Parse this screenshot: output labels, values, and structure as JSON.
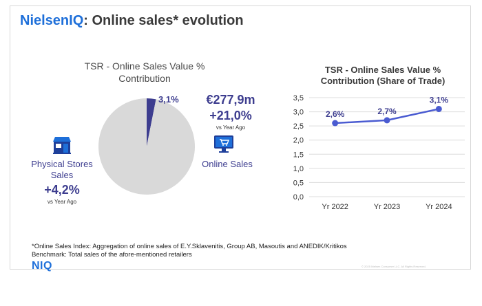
{
  "slide": {
    "title_brand": "NielsenIQ",
    "title_rest": ": Online sales* evolution",
    "pie_title": "TSR - Online Sales Value % Contribution",
    "online": {
      "share_label": "3,1%",
      "value": "€277,9m",
      "change": "+21,0%",
      "vs": "vs Year Ago",
      "label": "Online Sales",
      "icon": "computer-cart-icon"
    },
    "physical": {
      "label": "Physical Stores Sales",
      "change": "+4,2%",
      "vs": "vs Year Ago",
      "icon": "store-icon"
    },
    "footnote_1": "*Online Sales Index: Aggregation of online sales of E.Y.Sklavenitis, Group AB, Masoutis and ANEDIK/Kritikos",
    "footnote_2": "Benchmark: Total sales of the afore-mentioned retailers",
    "logo": "NIQ",
    "copyright": "© 2025 Nielsen Consumer LLC. All Rights Reserved."
  },
  "colors": {
    "brand": "#1e6fd9",
    "accent": "#3d3d8f",
    "pie_gray": "#d9d9d9",
    "line": "#4a5bd1"
  },
  "chart_data": [
    {
      "type": "pie",
      "title": "TSR - Online Sales Value % Contribution",
      "categories": [
        "Online Sales",
        "Physical Stores Sales"
      ],
      "values": [
        3.1,
        96.9
      ],
      "value_labels": [
        "3,1%",
        ""
      ]
    },
    {
      "type": "line",
      "title": "TSR - Online Sales Value % Contribution (Share of Trade)",
      "categories": [
        "Yr 2022",
        "Yr 2023",
        "Yr 2024"
      ],
      "values": [
        2.6,
        2.7,
        3.1
      ],
      "value_labels": [
        "2,6%",
        "2,7%",
        "3,1%"
      ],
      "ylim": [
        0,
        3.5
      ],
      "yticks": [
        "0,0",
        "0,5",
        "1,0",
        "1,5",
        "2,0",
        "2,5",
        "3,0",
        "3,5"
      ],
      "ytick_values": [
        0,
        0.5,
        1.0,
        1.5,
        2.0,
        2.5,
        3.0,
        3.5
      ],
      "grid": true
    }
  ]
}
